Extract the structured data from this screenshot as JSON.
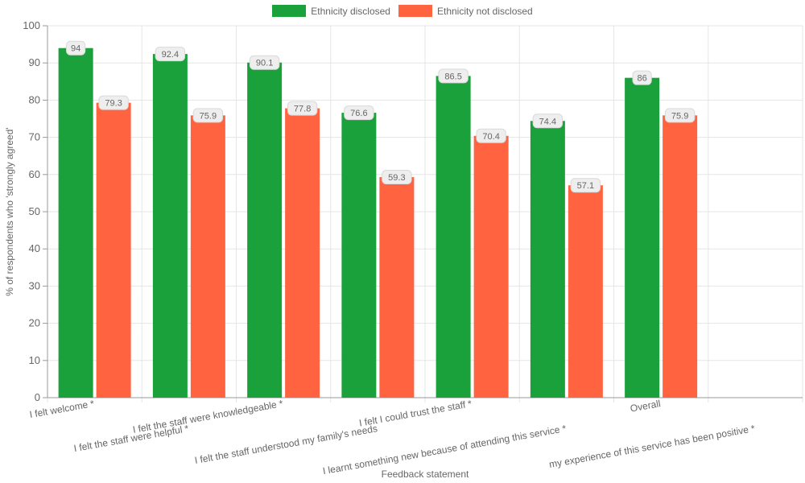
{
  "chart_data": {
    "type": "bar",
    "xlabel": "Feedback statement",
    "ylabel": "% of respondents who 'strongly agreed'",
    "ylim": [
      0,
      100
    ],
    "yticks": [
      0,
      10,
      20,
      30,
      40,
      50,
      60,
      70,
      80,
      90,
      100
    ],
    "grid": true,
    "legend_position": "top",
    "categories": [
      "I felt welcome *",
      "I felt the staff were helpful *",
      "I felt the staff were knowledgeable *",
      "I felt the staff understood my family's needs",
      "I felt I could trust the staff *",
      "I learnt something new because of attending this service *",
      "Overall",
      "my experience of this service has been positive *"
    ],
    "series": [
      {
        "name": "Ethnicity disclosed",
        "color": "#1aa13b",
        "values": [
          94,
          92.4,
          90.1,
          76.6,
          86.5,
          74.4,
          86,
          null
        ]
      },
      {
        "name": "Ethnicity not disclosed",
        "color": "#ff6340",
        "values": [
          79.3,
          75.9,
          77.8,
          59.3,
          70.4,
          57.1,
          75.9,
          null
        ]
      }
    ]
  }
}
